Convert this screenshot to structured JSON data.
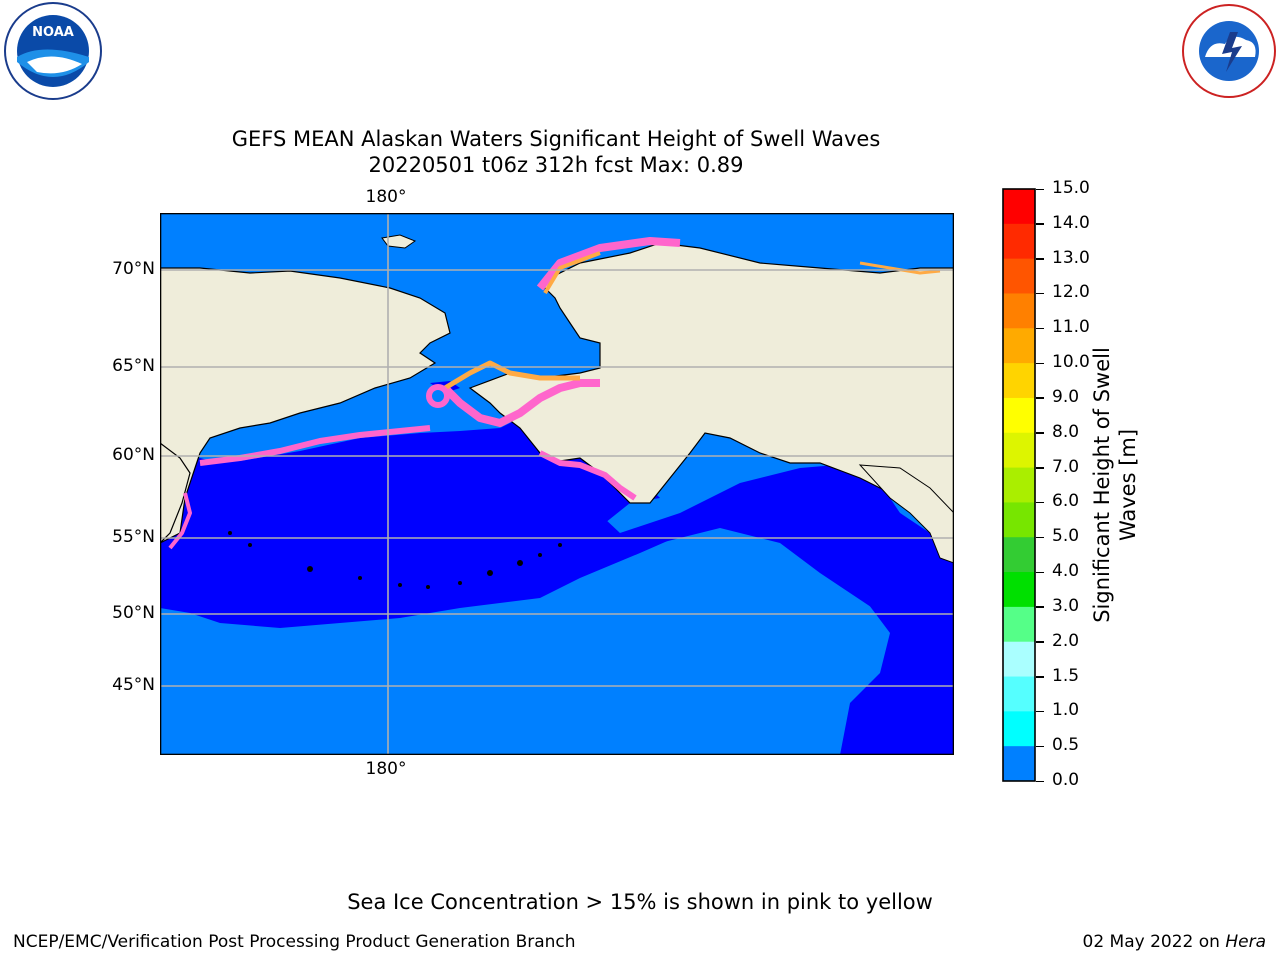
{
  "title_line1": "GEFS MEAN Alaskan Waters Significant Height of Swell Waves",
  "title_line2": "20220501 t06z 312h fcst   Max: 0.89",
  "logos": {
    "left": "noara-logo",
    "right": "nws-logo",
    "left_text": "NOAA"
  },
  "map": {
    "lat_labels": [
      "70°N",
      "65°N",
      "60°N",
      "55°N",
      "50°N",
      "45°N"
    ],
    "lon_label_top": "180°",
    "lon_label_bottom": "180°",
    "colors": {
      "land": "#efedda",
      "water_low": "#0000ff",
      "water_mid": "#0080ff",
      "ice": "#ff66cc",
      "ice_yellow": "#ffcc33"
    }
  },
  "colorbar": {
    "label_line1": "Significant Height of Swell",
    "label_line2": "Waves [m]",
    "ticks": [
      "15.0",
      "14.0",
      "13.0",
      "12.0",
      "11.0",
      "10.0",
      "9.0",
      "8.0",
      "7.0",
      "6.0",
      "5.0",
      "4.0",
      "3.0",
      "2.0",
      "1.5",
      "1.0",
      "0.5",
      "0.0"
    ],
    "colors": [
      "#ff0000",
      "#ff2a00",
      "#ff5500",
      "#ff8000",
      "#ffaa00",
      "#ffd400",
      "#ffff00",
      "#ddf500",
      "#aaee00",
      "#77e600",
      "#33cc33",
      "#00e000",
      "#55ff88",
      "#aaffff",
      "#55ffff",
      "#00ffff",
      "#0080ff",
      "#0000ff"
    ]
  },
  "note": "Sea Ice Concentration > 15% is shown in pink to yellow",
  "credit": "NCEP/EMC/Verification Post Processing Product Generation Branch",
  "date_prefix": "02 May 2022 on ",
  "date_host": "Hera"
}
